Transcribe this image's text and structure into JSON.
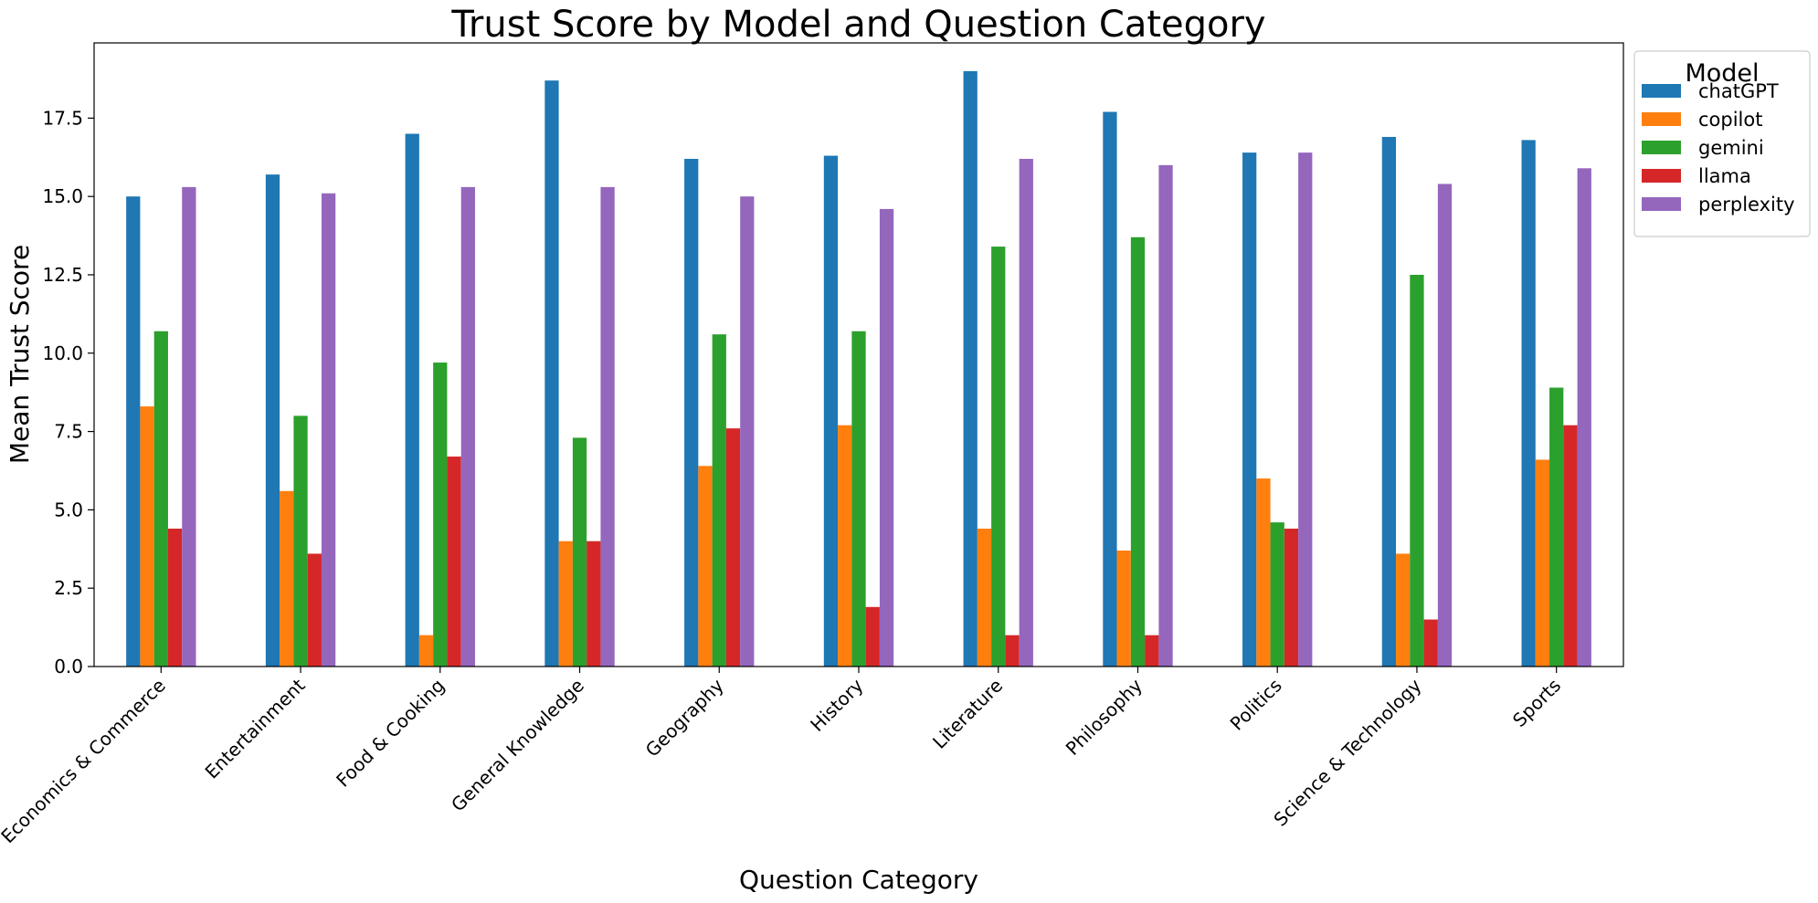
{
  "chart_data": {
    "type": "bar",
    "title": "Trust Score by Model and Question Category",
    "xlabel": "Question Category",
    "ylabel": "Mean Trust Score",
    "ylim": [
      0,
      19.9
    ],
    "yticks": [
      0.0,
      2.5,
      5.0,
      7.5,
      10.0,
      12.5,
      15.0,
      17.5
    ],
    "ytick_labels": [
      "0.0",
      "2.5",
      "5.0",
      "7.5",
      "10.0",
      "12.5",
      "15.0",
      "17.5"
    ],
    "grid": false,
    "legend_title": "Model",
    "legend_position": "outside top-right",
    "categories": [
      "Economics & Commerce",
      "Entertainment",
      "Food & Cooking",
      "General Knowledge",
      "Geography",
      "History",
      "Literature",
      "Philosophy",
      "Politics",
      "Science & Technology",
      "Sports"
    ],
    "series": [
      {
        "name": "chatGPT",
        "color": "#1f77b4",
        "values": [
          15.0,
          15.7,
          17.0,
          18.7,
          16.2,
          16.3,
          19.0,
          17.7,
          16.4,
          16.9,
          16.8
        ]
      },
      {
        "name": "copilot",
        "color": "#ff7f0e",
        "values": [
          8.3,
          5.6,
          1.0,
          4.0,
          6.4,
          7.7,
          4.4,
          3.7,
          6.0,
          3.6,
          6.6
        ]
      },
      {
        "name": "gemini",
        "color": "#2ca02c",
        "values": [
          10.7,
          8.0,
          9.7,
          7.3,
          10.6,
          10.7,
          13.4,
          13.7,
          4.6,
          12.5,
          8.9
        ]
      },
      {
        "name": "llama",
        "color": "#d62728",
        "values": [
          4.4,
          3.6,
          6.7,
          4.0,
          7.6,
          1.9,
          1.0,
          1.0,
          4.4,
          1.5,
          7.7
        ]
      },
      {
        "name": "perplexity",
        "color": "#9467bd",
        "values": [
          15.3,
          15.1,
          15.3,
          15.3,
          15.0,
          14.6,
          16.2,
          16.0,
          16.4,
          15.4,
          15.9
        ]
      }
    ]
  }
}
